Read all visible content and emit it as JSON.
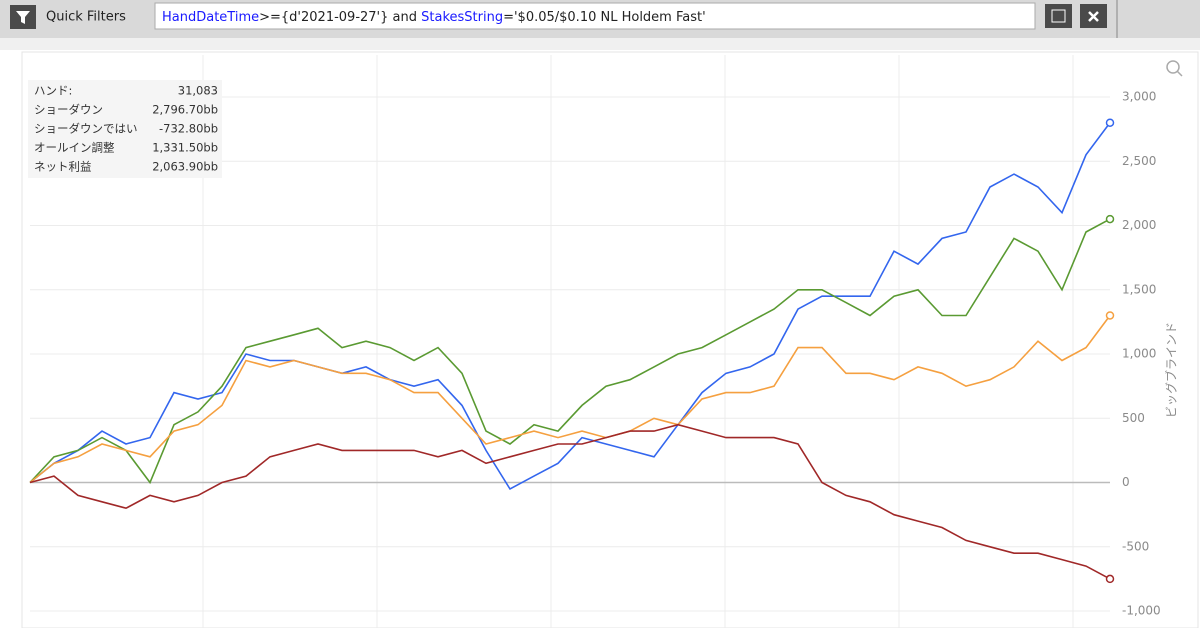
{
  "toolbar": {
    "label": "Quick Filters",
    "filter_parts": [
      "HandDateTime",
      ">={d'2021-09-27'} and ",
      "StakesString",
      "='$0.05/$0.10 NL Holdem Fast'"
    ]
  },
  "stats": {
    "rows": [
      [
        "ハンド:",
        "31,083"
      ],
      [
        "ショーダウン",
        "2,796.70bb"
      ],
      [
        "ショーダウンではい",
        "-732.80bb"
      ],
      [
        "オールイン調整",
        "1,331.50bb"
      ],
      [
        "ネット利益",
        "2,063.90bb"
      ]
    ]
  },
  "chart_data": {
    "type": "line",
    "y_label": "ビッグブラインド",
    "grid": true,
    "ylim": [
      -1132,
      3327
    ],
    "yticks": [
      {
        "value": -1000,
        "label": "-1,000"
      },
      -500,
      0,
      500,
      {
        "value": 1000,
        "label": "1,000"
      },
      {
        "value": 1500,
        "label": "1,500"
      },
      {
        "value": 2000,
        "label": "2,000"
      },
      {
        "value": 2500,
        "label": "2,500"
      },
      {
        "value": 3000,
        "label": "3,000"
      }
    ],
    "series": [
      {
        "color": "#3366ee",
        "values": [
          0,
          150,
          250,
          400,
          300,
          350,
          700,
          650,
          700,
          1000,
          950,
          950,
          900,
          850,
          900,
          800,
          750,
          800,
          600,
          250,
          -50,
          50,
          150,
          350,
          300,
          250,
          200,
          450,
          700,
          850,
          900,
          1000,
          1350,
          1450,
          1450,
          1450,
          1800,
          1700,
          1900,
          1950,
          2300,
          2400,
          2300,
          2100,
          2550,
          2800
        ]
      },
      {
        "color": "#5a9a32",
        "values": [
          0,
          200,
          250,
          350,
          250,
          0,
          450,
          550,
          750,
          1050,
          1100,
          1150,
          1200,
          1050,
          1100,
          1050,
          950,
          1050,
          850,
          400,
          300,
          450,
          400,
          600,
          750,
          800,
          900,
          1000,
          1050,
          1150,
          1250,
          1350,
          1500,
          1500,
          1400,
          1300,
          1450,
          1500,
          1300,
          1300,
          1600,
          1900,
          1800,
          1500,
          1950,
          2050
        ]
      },
      {
        "color": "#f5a040",
        "values": [
          0,
          150,
          200,
          300,
          250,
          200,
          400,
          450,
          600,
          950,
          900,
          950,
          900,
          850,
          850,
          800,
          700,
          700,
          500,
          300,
          350,
          400,
          350,
          400,
          350,
          400,
          500,
          450,
          650,
          700,
          700,
          750,
          1050,
          1050,
          850,
          850,
          800,
          900,
          850,
          750,
          800,
          900,
          1100,
          950,
          1050,
          1300
        ]
      },
      {
        "color": "#a02828",
        "values": [
          0,
          50,
          -100,
          -150,
          -200,
          -100,
          -150,
          -100,
          0,
          50,
          200,
          250,
          300,
          250,
          250,
          250,
          250,
          200,
          250,
          150,
          200,
          250,
          300,
          300,
          350,
          400,
          400,
          450,
          400,
          350,
          350,
          350,
          300,
          0,
          -100,
          -150,
          -250,
          -300,
          -350,
          -450,
          -500,
          -550,
          -550,
          -600,
          -650,
          -750
        ]
      }
    ]
  }
}
